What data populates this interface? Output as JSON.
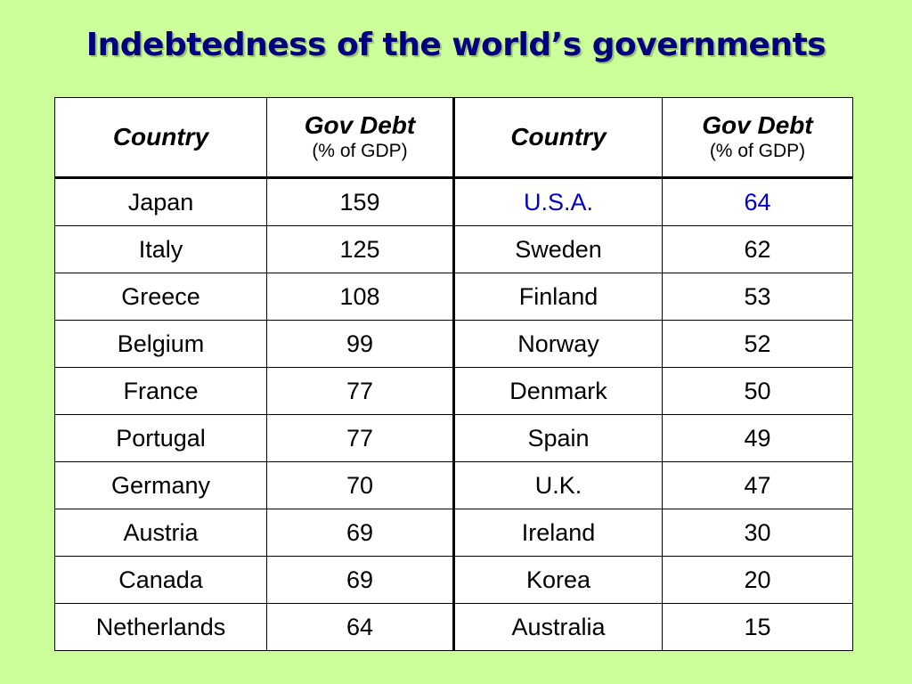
{
  "title": "Indebtedness of the world’s governments",
  "header": {
    "country": "Country",
    "gov_debt": "Gov Debt",
    "unit": "(% of GDP)"
  },
  "colors": {
    "background": "#ccff99",
    "title": "#000080",
    "highlight": "#0000cc"
  },
  "left_rows": [
    {
      "country": "Japan",
      "debt": "159"
    },
    {
      "country": "Italy",
      "debt": "125"
    },
    {
      "country": "Greece",
      "debt": "108"
    },
    {
      "country": "Belgium",
      "debt": "99"
    },
    {
      "country": "France",
      "debt": "77"
    },
    {
      "country": "Portugal",
      "debt": "77"
    },
    {
      "country": "Germany",
      "debt": "70"
    },
    {
      "country": "Austria",
      "debt": "69"
    },
    {
      "country": "Canada",
      "debt": "69"
    },
    {
      "country": "Netherlands",
      "debt": "64"
    }
  ],
  "right_rows": [
    {
      "country": "U.S.A.",
      "debt": "64",
      "highlight": true
    },
    {
      "country": "Sweden",
      "debt": "62"
    },
    {
      "country": "Finland",
      "debt": "53"
    },
    {
      "country": "Norway",
      "debt": "52"
    },
    {
      "country": "Denmark",
      "debt": "50"
    },
    {
      "country": "Spain",
      "debt": "49"
    },
    {
      "country": "U.K.",
      "debt": "47"
    },
    {
      "country": "Ireland",
      "debt": "30"
    },
    {
      "country": "Korea",
      "debt": "20"
    },
    {
      "country": "Australia",
      "debt": "15"
    }
  ]
}
